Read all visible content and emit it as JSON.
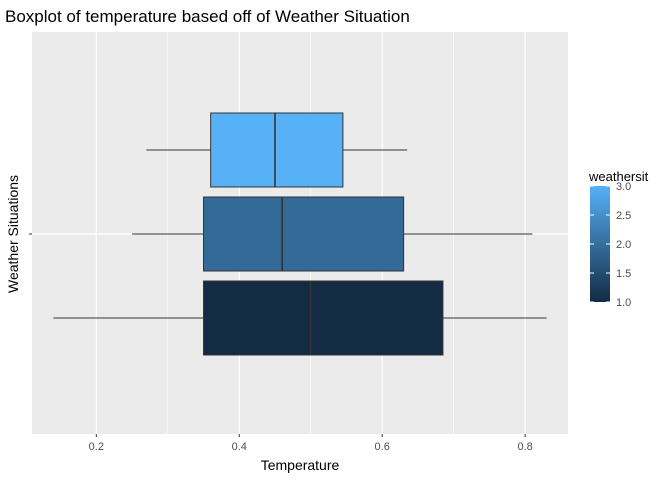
{
  "chart_data": {
    "type": "boxplot",
    "orientation": "horizontal",
    "title": "Boxplot of temperature based off of Weather Situation",
    "xlabel": "Temperature",
    "ylabel": "Weather Situations",
    "xlim": [
      0.11,
      0.86
    ],
    "xticks": [
      0.2,
      0.4,
      0.6,
      0.8
    ],
    "xtick_labels": [
      "0.2",
      "0.4",
      "0.6",
      "0.8"
    ],
    "grid": true,
    "legend": {
      "title": "weathersit",
      "position": "right",
      "range": [
        1.0,
        3.0
      ],
      "ticks": [
        1.0,
        1.5,
        2.0,
        2.5,
        3.0
      ],
      "tick_labels": [
        "1.0",
        "1.5",
        "2.0",
        "2.5",
        "3.0"
      ],
      "color_low": "#132B43",
      "color_high": "#56B1F7"
    },
    "boxes": [
      {
        "weathersit": 3,
        "whisker_low": 0.27,
        "q1": 0.36,
        "median": 0.45,
        "q3": 0.545,
        "whisker_high": 0.635,
        "color": "#56B1F7"
      },
      {
        "weathersit": 2,
        "whisker_low": 0.25,
        "q1": 0.35,
        "median": 0.46,
        "q3": 0.63,
        "whisker_high": 0.81,
        "color": "#336A98"
      },
      {
        "weathersit": 1,
        "whisker_low": 0.14,
        "q1": 0.35,
        "median": 0.5,
        "q3": 0.685,
        "whisker_high": 0.83,
        "color": "#132B43"
      }
    ],
    "colors": {
      "panel_bg": "#EBEBEB",
      "grid": "#FFFFFF",
      "outline": "#333333"
    }
  }
}
